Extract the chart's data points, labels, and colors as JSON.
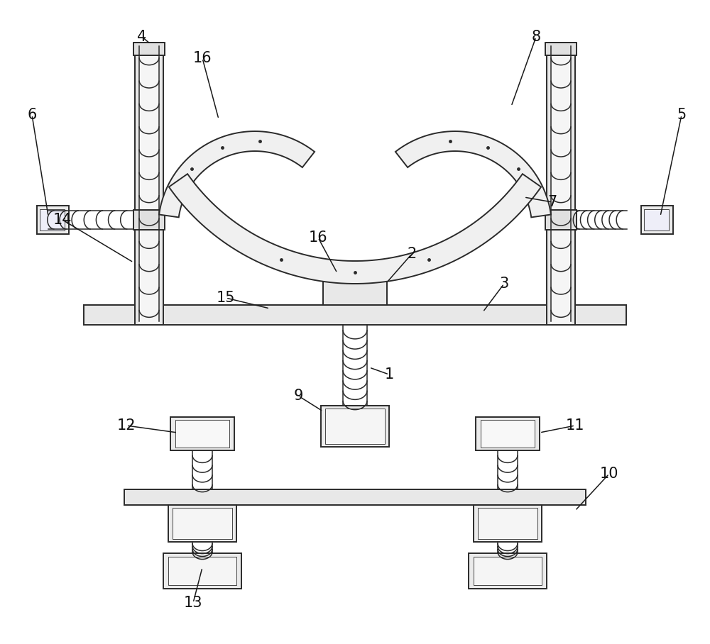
{
  "bg_color": "#ffffff",
  "line_color": "#2a2a2a",
  "figsize": [
    10.0,
    9.08
  ],
  "dpi": 100
}
